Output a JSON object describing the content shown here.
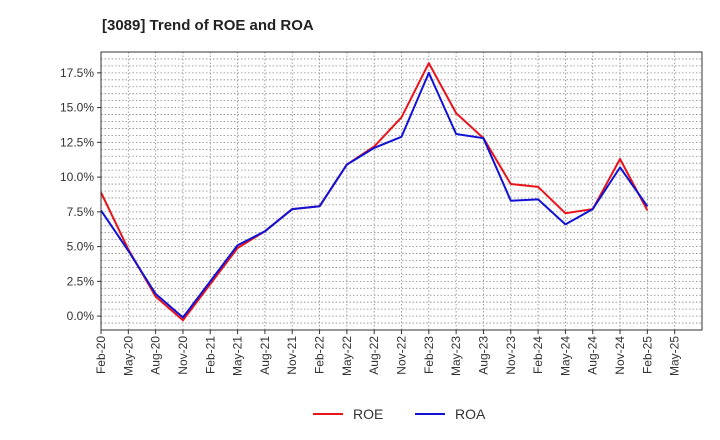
{
  "chart_data": {
    "type": "line",
    "title": "[3089]  Trend of ROE and ROA",
    "xlabel": "",
    "ylabel": "",
    "categories": [
      "Feb-20",
      "May-20",
      "Aug-20",
      "Nov-20",
      "Feb-21",
      "May-21",
      "Aug-21",
      "Nov-21",
      "Feb-22",
      "May-22",
      "Aug-22",
      "Nov-22",
      "Feb-23",
      "May-23",
      "Aug-23",
      "Nov-23",
      "Feb-24",
      "May-24",
      "Aug-24",
      "Nov-24",
      "Feb-25",
      "May-25"
    ],
    "y_ticks": [
      "0.0%",
      "2.5%",
      "5.0%",
      "7.5%",
      "10.0%",
      "12.5%",
      "15.0%",
      "17.5%"
    ],
    "ylim": [
      -1.0,
      19.0
    ],
    "grid": true,
    "legend_position": "bottom",
    "series": [
      {
        "name": "ROE",
        "color": "#e8141b",
        "values": [
          8.9,
          4.8,
          1.4,
          -0.3,
          2.3,
          4.9,
          6.1,
          7.7,
          7.9,
          10.9,
          12.2,
          14.3,
          18.2,
          14.6,
          12.8,
          9.5,
          9.3,
          7.4,
          7.7,
          11.3,
          7.6,
          null
        ]
      },
      {
        "name": "ROA",
        "color": "#1212d4",
        "values": [
          7.6,
          4.7,
          1.6,
          -0.1,
          2.5,
          5.1,
          6.1,
          7.7,
          7.9,
          10.9,
          12.1,
          12.9,
          17.5,
          13.1,
          12.8,
          8.3,
          8.4,
          6.6,
          7.7,
          10.7,
          7.9,
          null
        ]
      }
    ]
  }
}
